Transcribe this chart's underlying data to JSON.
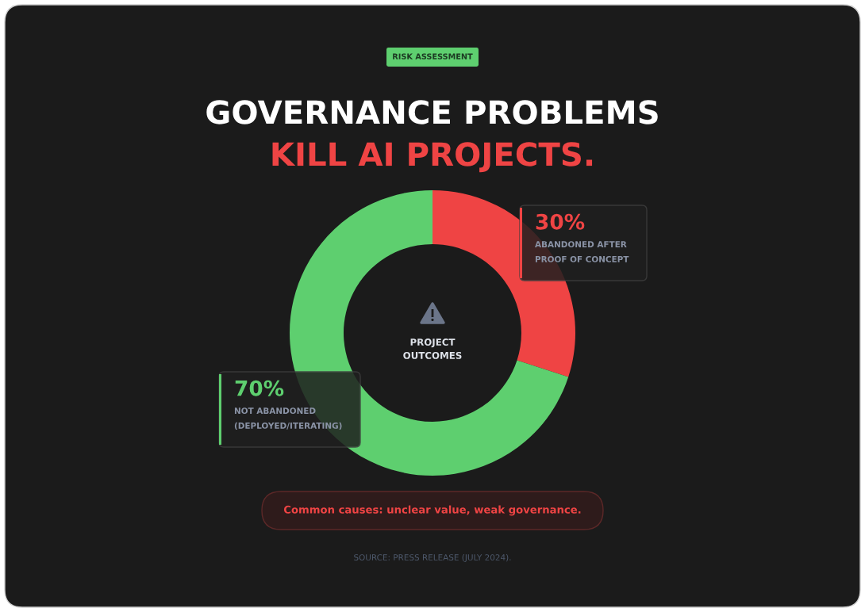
{
  "chart_data": {
    "type": "donut",
    "subtitle": "RISK ASSESSMENT",
    "title": "GOVERNANCE PROBLEMS\nKILL AI PROJECTS.",
    "categories": [
      "ABANDONED AFTER\nPROOF OF CONCEPT",
      "NOT ABANDONED\n(DEPLOYED/ITERATING)"
    ],
    "values": [
      30,
      70
    ],
    "colors": [
      "#ef4444",
      "#5ecf6f"
    ],
    "value_labels": [
      "30%",
      "70%"
    ],
    "annotations": [
      "PROJECT\nOUTCOMES",
      "Common causes: unclear value, weak governance.",
      "SOURCE: PRESS RELEASE (JULY 2024)."
    ]
  }
}
